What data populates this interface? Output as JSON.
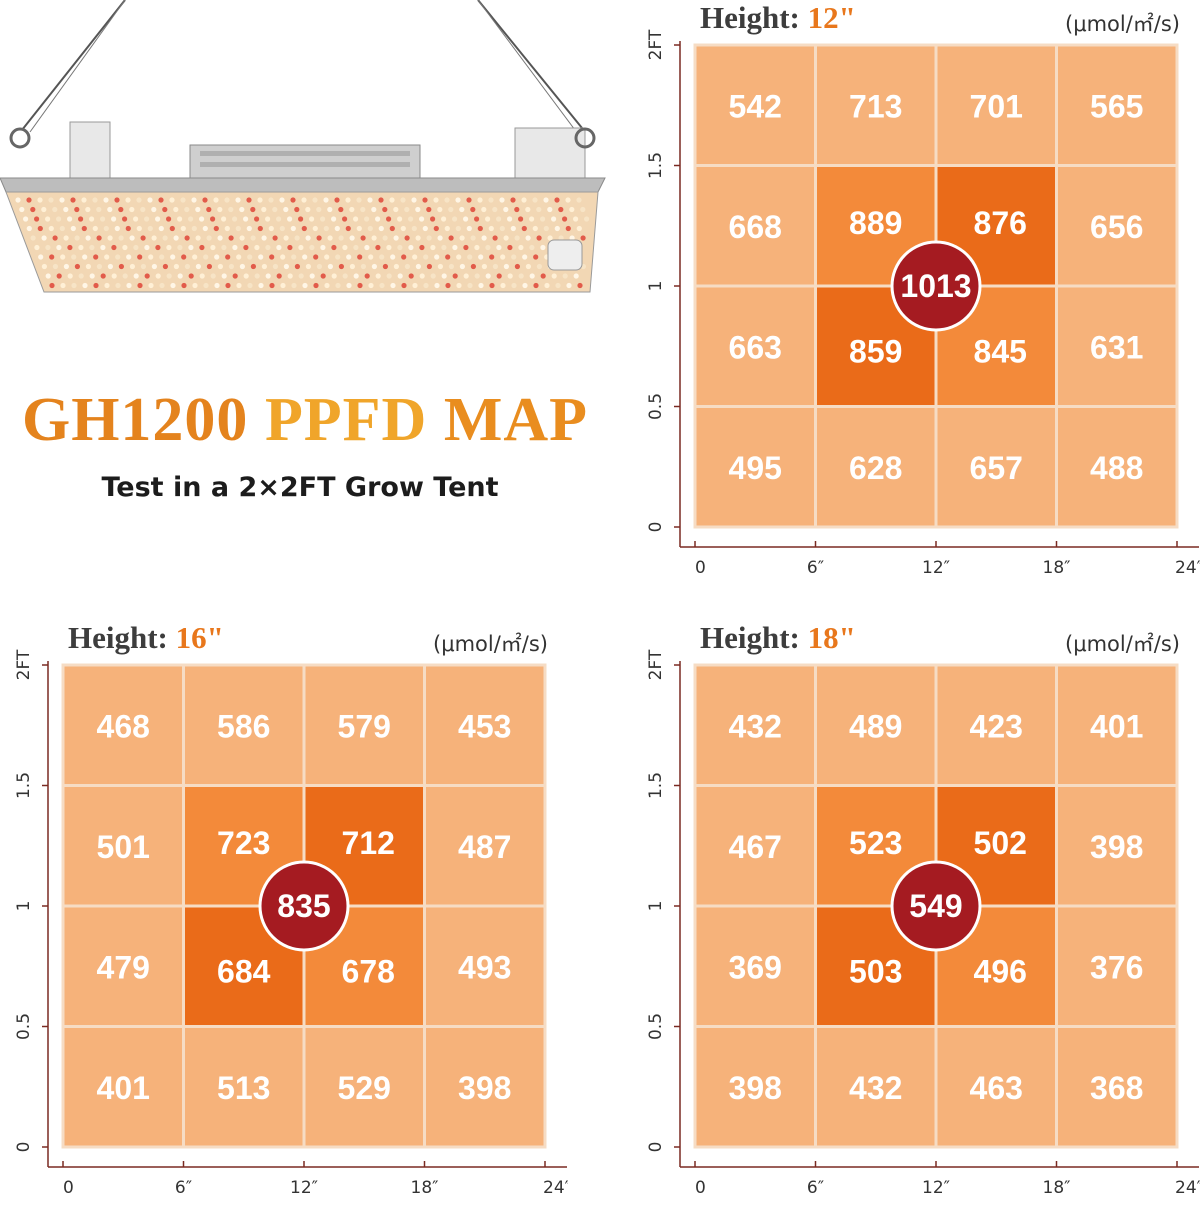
{
  "headline": {
    "part1": "GH1200",
    "part2": " PPFD ",
    "part3": "MAP"
  },
  "subline": "Test in a 2×2FT Grow Tent",
  "colors": {
    "light": "#f6b27a",
    "mid": "#f38a3a",
    "dark": "#ea6b19",
    "center": "#a51b21",
    "grid": "#f6dcc4",
    "axis": "#7a2a22"
  },
  "chart_data": [
    {
      "type": "heatmap",
      "title_label": "Height:",
      "title_value": "12\"",
      "unit": "(μmol/㎡/s)",
      "x_ticks": [
        "0",
        "6″",
        "12″",
        "18″",
        "24″"
      ],
      "y_ticks": [
        "0",
        "0.5",
        "1",
        "1.5",
        "2FT"
      ],
      "rows": [
        [
          542,
          713,
          701,
          565
        ],
        [
          668,
          889,
          876,
          656
        ],
        [
          663,
          859,
          845,
          631
        ],
        [
          495,
          628,
          657,
          488
        ]
      ],
      "center": 1013
    },
    {
      "type": "heatmap",
      "title_label": "Height:",
      "title_value": "16\"",
      "unit": "(μmol/㎡/s)",
      "x_ticks": [
        "0",
        "6″",
        "12″",
        "18″",
        "24″"
      ],
      "y_ticks": [
        "0",
        "0.5",
        "1",
        "1.5",
        "2FT"
      ],
      "rows": [
        [
          468,
          586,
          579,
          453
        ],
        [
          501,
          723,
          712,
          487
        ],
        [
          479,
          684,
          678,
          493
        ],
        [
          401,
          513,
          529,
          398
        ]
      ],
      "center": 835
    },
    {
      "type": "heatmap",
      "title_label": "Height:",
      "title_value": "18\"",
      "unit": "(μmol/㎡/s)",
      "x_ticks": [
        "0",
        "6″",
        "12″",
        "18″",
        "24″"
      ],
      "y_ticks": [
        "0",
        "0.5",
        "1",
        "1.5",
        "2FT"
      ],
      "rows": [
        [
          432,
          489,
          423,
          401
        ],
        [
          467,
          523,
          502,
          398
        ],
        [
          369,
          503,
          496,
          376
        ],
        [
          398,
          432,
          463,
          368
        ]
      ],
      "center": 549
    }
  ]
}
